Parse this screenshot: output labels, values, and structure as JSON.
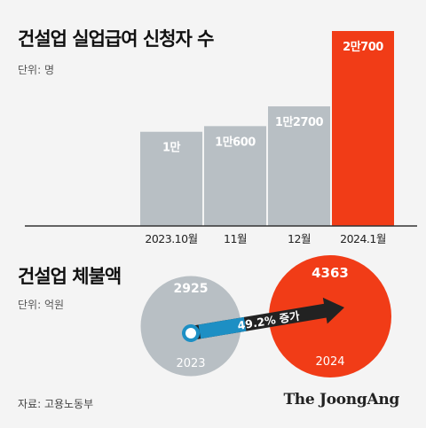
{
  "chart_data": [
    {
      "type": "bar",
      "title": "건설업 실업급여 신청자 수",
      "unit_label": "단위: 명",
      "categories": [
        "2023.10월",
        "11월",
        "12월",
        "2024.1월"
      ],
      "values": [
        10000,
        10600,
        12700,
        20700
      ],
      "value_labels": [
        "1만",
        "1만600",
        "1만2700",
        "2만700"
      ],
      "ylim": [
        0,
        20700
      ],
      "colors": {
        "default": "#b8bfc4",
        "highlight": "#f13c17"
      },
      "highlight_index": 3
    },
    {
      "type": "bubble",
      "title": "건설업 체불액",
      "unit_label": "단위: 억원",
      "categories": [
        "2023",
        "2024"
      ],
      "values": [
        2925,
        4363
      ],
      "value_labels": [
        "2925",
        "4363"
      ],
      "change_label": "49.2% 증가",
      "colors": {
        "left": "#b8bfc4",
        "right": "#f13c17",
        "arrow": "#222222",
        "label": "#1d8fc4"
      }
    }
  ],
  "footer": {
    "source": "자료: 고용노동부",
    "brand": "The JoongAng"
  }
}
